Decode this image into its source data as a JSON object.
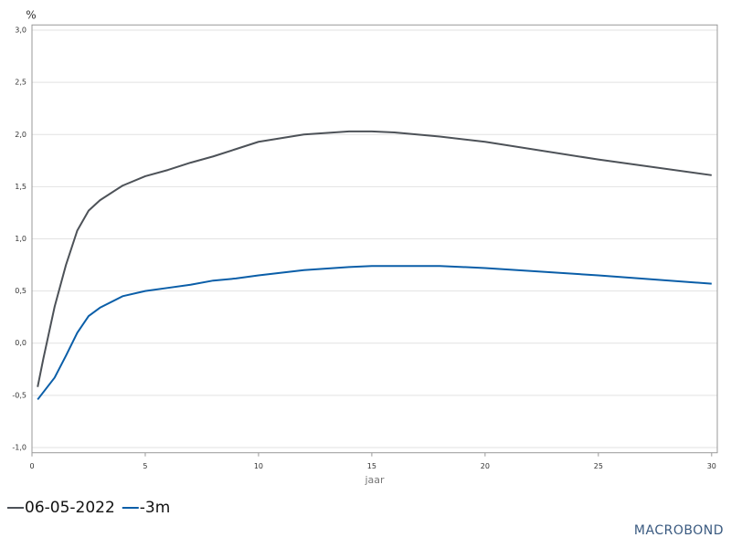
{
  "chart_data": {
    "type": "line",
    "y_label": "%",
    "x_label": "jaar",
    "x": [
      0.25,
      0.5,
      1,
      1.5,
      2,
      2.5,
      3,
      4,
      5,
      6,
      7,
      8,
      9,
      10,
      12,
      14,
      15,
      16,
      17,
      18,
      20,
      25,
      30
    ],
    "series": [
      {
        "name": "06-05-2022",
        "color": "#4d5258",
        "values": [
          -0.42,
          -0.15,
          0.35,
          0.75,
          1.08,
          1.27,
          1.37,
          1.51,
          1.6,
          1.66,
          1.73,
          1.79,
          1.86,
          1.93,
          2.0,
          2.03,
          2.03,
          2.02,
          2.0,
          1.98,
          1.93,
          1.76,
          1.61
        ]
      },
      {
        "name": "-3m",
        "color": "#0a5ea8",
        "values": [
          -0.54,
          -0.47,
          -0.33,
          -0.12,
          0.1,
          0.26,
          0.34,
          0.45,
          0.5,
          0.53,
          0.56,
          0.6,
          0.62,
          0.65,
          0.7,
          0.73,
          0.74,
          0.74,
          0.74,
          0.74,
          0.72,
          0.65,
          0.57
        ]
      }
    ],
    "xlim": [
      0,
      30.25
    ],
    "xticks": [
      0,
      5,
      10,
      15,
      20,
      25,
      30
    ],
    "ylim": [
      -1.05,
      3.05
    ],
    "yticks": [
      {
        "value": -1,
        "label": "-1,0"
      },
      {
        "value": -0.5,
        "label": "-0,5"
      },
      {
        "value": 0,
        "label": "0,0"
      },
      {
        "value": 0.5,
        "label": "0,5"
      },
      {
        "value": 1,
        "label": "1,0"
      },
      {
        "value": 1.5,
        "label": "1,5"
      },
      {
        "value": 2,
        "label": "2,0"
      },
      {
        "value": 2.5,
        "label": "2,5"
      },
      {
        "value": 3,
        "label": "3,0"
      }
    ],
    "grid": true,
    "legend": "bottom-left",
    "logo": "MACROBOND"
  }
}
